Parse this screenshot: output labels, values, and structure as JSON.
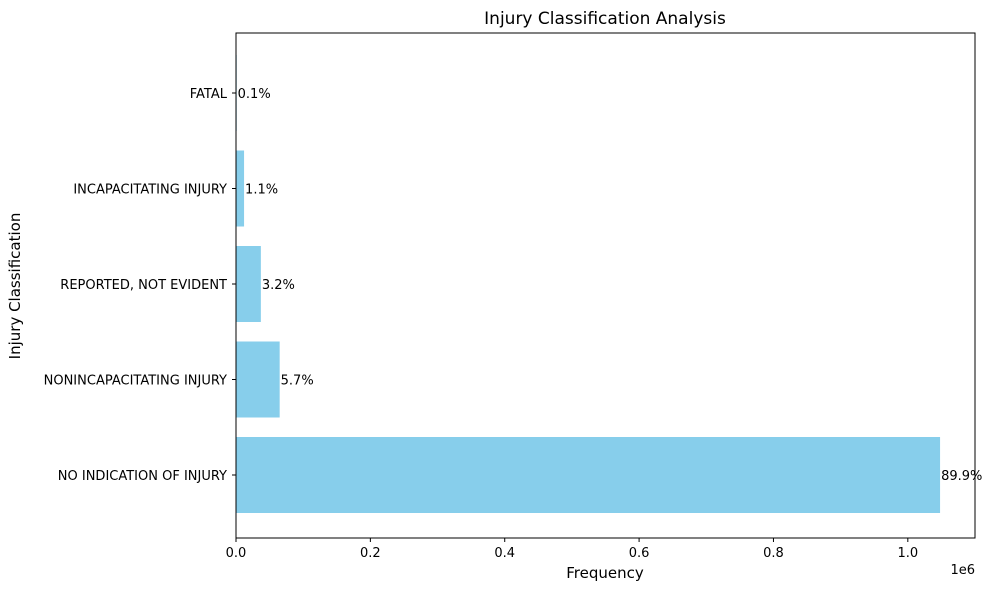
{
  "chart_data": {
    "type": "bar",
    "orientation": "horizontal",
    "title": "Injury Classification Analysis",
    "xlabel": "Frequency",
    "ylabel": "Injury Classification",
    "x_offset_label": "1e6",
    "xlim": [
      0,
      1.1
    ],
    "x_ticks": [
      {
        "value": 0.0,
        "label": "0.0"
      },
      {
        "value": 0.2,
        "label": "0.2"
      },
      {
        "value": 0.4,
        "label": "0.4"
      },
      {
        "value": 0.6,
        "label": "0.6"
      },
      {
        "value": 0.8,
        "label": "0.8"
      },
      {
        "value": 1.0,
        "label": "1.0"
      }
    ],
    "grid": false,
    "bar_color": "#87CEEB",
    "categories": [
      "NO INDICATION OF INJURY",
      "NONINCAPACITATING INJURY",
      "REPORTED, NOT EVIDENT",
      "INCAPACITATING INJURY",
      "FATAL"
    ],
    "values": [
      1.048,
      0.065,
      0.037,
      0.012,
      0.001
    ],
    "value_labels": [
      "89.9%",
      "5.7%",
      "3.2%",
      "1.1%",
      "0.1%"
    ]
  }
}
